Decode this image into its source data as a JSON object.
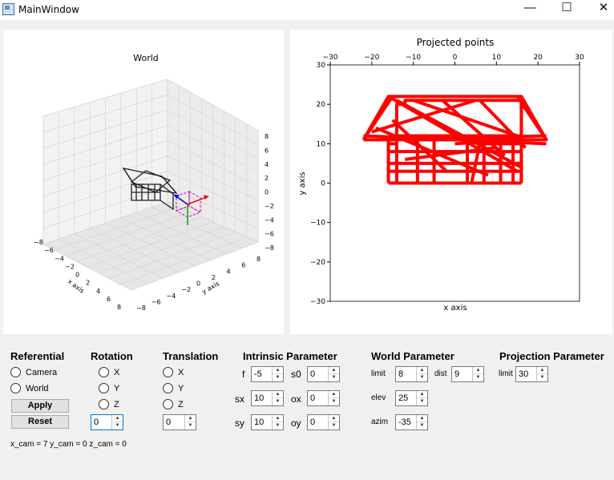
{
  "window": {
    "title": "MainWindow",
    "minimize_glyph": "—",
    "maximize_glyph": "☐",
    "close_glyph": "✕",
    "icon": "app-window-icon"
  },
  "world_plot": {
    "title": "World",
    "xlabel": "x axis",
    "ylabel": "y axis",
    "x_ticks": [
      "−8",
      "−6",
      "−4",
      "−2",
      "0",
      "2",
      "4",
      "6",
      "8"
    ],
    "y_ticks": [
      "−8",
      "−6",
      "−4",
      "−2",
      "0",
      "2",
      "4",
      "6",
      "8"
    ],
    "z_ticks": [
      "8",
      "6",
      "4",
      "2",
      "0",
      "−2",
      "−4",
      "−6",
      "−8"
    ]
  },
  "chart_data": {
    "type": "line",
    "title": "Projected points",
    "xlabel": "x axis",
    "ylabel": "y axis",
    "xlim": [
      -30,
      30
    ],
    "ylim": [
      -30,
      30
    ],
    "x_ticks": [
      "−30",
      "−20",
      "−10",
      "0",
      "10",
      "20",
      "30"
    ],
    "y_ticks": [
      "30",
      "20",
      "10",
      "0",
      "−10",
      "−20",
      "−30"
    ],
    "series_color": "#ff0000",
    "series": [
      {
        "x": [
          -16,
          -16,
          -14,
          -14,
          -12,
          -12,
          -10,
          -8,
          -6,
          -4,
          -2,
          0,
          2,
          4,
          6,
          8,
          10,
          12,
          14,
          16,
          16,
          14,
          12,
          10,
          8,
          6,
          4,
          2,
          0,
          -2,
          -4,
          -6,
          -8,
          -10,
          -12,
          -14,
          -16
        ],
        "y": [
          0,
          10,
          10,
          20,
          20,
          21,
          21,
          21,
          21,
          21,
          21,
          21,
          21,
          21,
          21,
          21,
          21,
          21,
          21,
          21,
          10,
          10,
          10,
          10,
          10,
          10,
          0,
          0,
          0,
          0,
          0,
          0,
          0,
          0,
          0,
          0,
          0
        ]
      }
    ],
    "lines": [
      {
        "x": [
          -22,
          -16,
          16,
          22,
          -22
        ],
        "y": [
          11,
          22,
          22,
          11,
          11
        ]
      },
      {
        "x": [
          -16,
          16
        ],
        "y": [
          0,
          0
        ]
      },
      {
        "x": [
          -16,
          -16
        ],
        "y": [
          0,
          12
        ]
      },
      {
        "x": [
          16,
          16
        ],
        "y": [
          0,
          12
        ]
      },
      {
        "x": [
          -16,
          16
        ],
        "y": [
          12,
          12
        ]
      },
      {
        "x": [
          -16,
          16
        ],
        "y": [
          5,
          5
        ]
      },
      {
        "x": [
          -16,
          16
        ],
        "y": [
          3,
          3
        ]
      },
      {
        "x": [
          -16,
          16
        ],
        "y": [
          8,
          8
        ]
      },
      {
        "x": [
          -14,
          -14
        ],
        "y": [
          0,
          11
        ]
      },
      {
        "x": [
          -9,
          -9
        ],
        "y": [
          0,
          11
        ]
      },
      {
        "x": [
          -5,
          -5
        ],
        "y": [
          0,
          11
        ]
      },
      {
        "x": [
          3,
          3
        ],
        "y": [
          0,
          11
        ]
      },
      {
        "x": [
          7,
          7
        ],
        "y": [
          0,
          11
        ]
      },
      {
        "x": [
          11,
          11
        ],
        "y": [
          0,
          11
        ]
      },
      {
        "x": [
          14,
          14
        ],
        "y": [
          0,
          11
        ]
      },
      {
        "x": [
          -22,
          22
        ],
        "y": [
          12,
          10
        ]
      },
      {
        "x": [
          -16,
          15
        ],
        "y": [
          22,
          3
        ]
      },
      {
        "x": [
          -14,
          16
        ],
        "y": [
          21,
          4
        ]
      },
      {
        "x": [
          -20,
          5
        ],
        "y": [
          13,
          21
        ]
      },
      {
        "x": [
          -10,
          15
        ],
        "y": [
          21,
          12
        ]
      },
      {
        "x": [
          -16,
          22
        ],
        "y": [
          11,
          12
        ]
      },
      {
        "x": [
          -3,
          12
        ],
        "y": [
          21,
          7
        ]
      },
      {
        "x": [
          6,
          17
        ],
        "y": [
          21,
          9
        ]
      },
      {
        "x": [
          -15,
          -2
        ],
        "y": [
          16,
          3
        ]
      },
      {
        "x": [
          -19,
          8
        ],
        "y": [
          14,
          2
        ]
      },
      {
        "x": [
          15,
          22
        ],
        "y": [
          22,
          11
        ]
      },
      {
        "x": [
          -15,
          -22
        ],
        "y": [
          22,
          11
        ]
      },
      {
        "x": [
          0,
          15
        ],
        "y": [
          10,
          11
        ]
      },
      {
        "x": [
          -12,
          10
        ],
        "y": [
          6,
          9
        ]
      }
    ]
  },
  "referential": {
    "title": "Referential",
    "options": [
      "Camera",
      "World"
    ]
  },
  "rotation": {
    "title": "Rotation",
    "options": [
      "X",
      "Y",
      "Z"
    ],
    "value": "0"
  },
  "translation": {
    "title": "Translation",
    "options": [
      "X",
      "Y",
      "Z"
    ],
    "value": "0"
  },
  "buttons": {
    "apply": "Apply",
    "reset": "Reset"
  },
  "intrinsic": {
    "title": "Intrinsic Parameter",
    "f": {
      "label": "f",
      "value": "-5"
    },
    "s0": {
      "label": "s0",
      "value": "0"
    },
    "sx": {
      "label": "sx",
      "value": "10"
    },
    "ox": {
      "label": "ox",
      "value": "0"
    },
    "sy": {
      "label": "sy",
      "value": "10"
    },
    "oy": {
      "label": "oy",
      "value": "0"
    }
  },
  "world_param": {
    "title": "World Parameter",
    "limit": {
      "label": "limit",
      "value": "8"
    },
    "dist": {
      "label": "dist",
      "value": "9"
    },
    "elev": {
      "label": "elev",
      "value": "25"
    },
    "azim": {
      "label": "azim",
      "value": "-35"
    }
  },
  "projection_param": {
    "title": "Projection Parameter",
    "limit": {
      "label": "limit",
      "value": "30"
    }
  },
  "status": "x_cam = 7 y_cam = 0 z_cam = 0",
  "spin_up": "▲",
  "spin_down": "▼"
}
